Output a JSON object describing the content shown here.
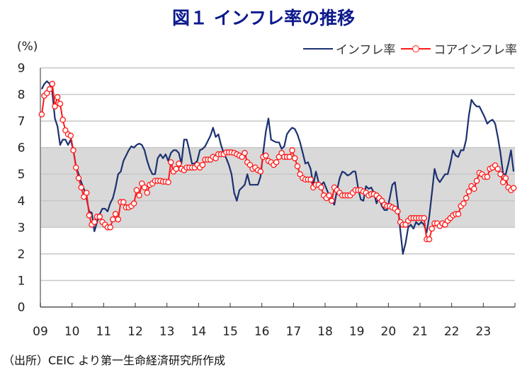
{
  "chart_data": {
    "type": "line",
    "title": "図１ インフレ率の推移",
    "ylabel": "(%)",
    "xlabel": "",
    "ylim": [
      0,
      9
    ],
    "yticks": [
      "0",
      "1",
      "2",
      "3",
      "4",
      "5",
      "6",
      "7",
      "8",
      "9"
    ],
    "xticks": [
      "09",
      "10",
      "11",
      "12",
      "13",
      "14",
      "15",
      "16",
      "17",
      "18",
      "19",
      "20",
      "21",
      "22",
      "23"
    ],
    "x_range": [
      "2009-01",
      "2023-12"
    ],
    "frequency": "monthly",
    "grid": true,
    "legend": "top-right",
    "shaded_band": {
      "from": 3,
      "to": 6,
      "color": "#d9d9d9"
    },
    "series": [
      {
        "name": "インフレ率",
        "color": "#1c3170",
        "marker": "none",
        "values": [
          8.2,
          8.4,
          8.5,
          8.4,
          8.1,
          7.1,
          6.8,
          6.1,
          6.3,
          6.3,
          6.1,
          6.3,
          5.9,
          5.3,
          5.0,
          4.7,
          4.45,
          4.1,
          3.6,
          3.55,
          2.85,
          3.2,
          3.5,
          3.7,
          3.7,
          3.6,
          3.9,
          4.1,
          4.5,
          5.0,
          5.1,
          5.5,
          5.7,
          5.9,
          6.05,
          6.0,
          6.1,
          6.15,
          6.1,
          5.9,
          5.5,
          5.2,
          5.0,
          5.0,
          5.6,
          5.75,
          5.6,
          5.75,
          5.5,
          5.8,
          5.9,
          5.9,
          5.8,
          5.4,
          6.3,
          6.3,
          5.9,
          5.4,
          5.4,
          5.5,
          5.9,
          5.95,
          6.05,
          6.25,
          6.45,
          6.75,
          6.4,
          6.5,
          6.1,
          5.8,
          5.6,
          5.35,
          5.0,
          4.3,
          4.0,
          4.4,
          4.5,
          4.6,
          5.0,
          4.6,
          4.6,
          4.6,
          4.6,
          4.9,
          5.8,
          6.6,
          7.1,
          6.3,
          6.25,
          6.2,
          6.2,
          5.95,
          6.05,
          6.5,
          6.65,
          6.75,
          6.7,
          6.5,
          6.2,
          5.8,
          5.4,
          5.45,
          5.2,
          4.6,
          5.1,
          4.7,
          4.6,
          4.7,
          4.45,
          4.2,
          4.0,
          3.85,
          4.4,
          4.85,
          5.1,
          5.05,
          4.95,
          5.0,
          5.1,
          5.1,
          4.5,
          4.05,
          4.0,
          4.55,
          4.45,
          4.5,
          4.3,
          3.9,
          4.15,
          3.8,
          3.65,
          3.65,
          4.1,
          4.6,
          4.7,
          3.9,
          2.9,
          2.0,
          2.4,
          3.0,
          3.1,
          2.95,
          3.2,
          3.1,
          3.2,
          3.1,
          2.8,
          3.4,
          4.3,
          5.2,
          4.85,
          4.7,
          4.85,
          5.0,
          5.0,
          5.4,
          5.9,
          5.7,
          5.65,
          5.9,
          5.9,
          6.3,
          7.2,
          7.8,
          7.65,
          7.55,
          7.55,
          7.35,
          7.15,
          6.9,
          7.0,
          7.05,
          6.9,
          6.4,
          5.8,
          5.0,
          5.0,
          5.4,
          5.9,
          5.1
        ]
      },
      {
        "name": "コアインフレ率",
        "color": "#ff1a1a",
        "marker": "circle",
        "values": [
          7.25,
          7.95,
          8.05,
          8.2,
          8.4,
          7.55,
          7.9,
          7.65,
          7.05,
          6.65,
          6.5,
          6.45,
          5.9,
          5.25,
          4.85,
          4.5,
          4.15,
          4.3,
          3.45,
          3.1,
          3.2,
          3.4,
          3.4,
          3.2,
          3.1,
          3.0,
          3.0,
          3.3,
          3.5,
          3.3,
          3.95,
          3.95,
          3.75,
          3.75,
          3.8,
          3.9,
          4.4,
          4.2,
          4.65,
          4.5,
          4.3,
          4.6,
          4.65,
          4.75,
          4.75,
          4.75,
          4.72,
          4.72,
          4.7,
          5.45,
          5.1,
          5.2,
          5.4,
          5.2,
          5.15,
          5.25,
          5.25,
          5.25,
          5.25,
          5.35,
          5.25,
          5.35,
          5.55,
          5.55,
          5.55,
          5.65,
          5.6,
          5.75,
          5.75,
          5.75,
          5.82,
          5.82,
          5.82,
          5.8,
          5.75,
          5.7,
          5.65,
          5.8,
          5.45,
          5.35,
          5.2,
          5.25,
          5.15,
          5.1,
          5.65,
          5.7,
          5.5,
          5.45,
          5.35,
          5.45,
          5.65,
          5.8,
          5.65,
          5.65,
          5.65,
          5.9,
          5.6,
          5.3,
          5.0,
          4.85,
          4.8,
          4.8,
          4.8,
          4.5,
          4.6,
          4.6,
          4.5,
          4.2,
          4.1,
          4.2,
          4.0,
          4.5,
          4.4,
          4.3,
          4.2,
          4.2,
          4.2,
          4.2,
          4.3,
          4.4,
          4.4,
          4.4,
          4.35,
          4.3,
          4.2,
          4.25,
          4.25,
          4.2,
          4.1,
          4.0,
          3.85,
          3.8,
          3.8,
          3.75,
          3.7,
          3.6,
          3.2,
          3.1,
          3.1,
          3.25,
          3.35,
          3.35,
          3.35,
          3.35,
          3.35,
          3.35,
          2.55,
          2.55,
          2.95,
          3.15,
          3.15,
          3.05,
          3.15,
          3.1,
          3.25,
          3.35,
          3.45,
          3.5,
          3.5,
          3.8,
          3.9,
          4.1,
          4.35,
          4.55,
          4.45,
          4.75,
          5.05,
          5.0,
          4.9,
          4.9,
          5.2,
          5.25,
          5.33,
          5.2,
          5.0,
          4.7,
          4.85,
          4.5,
          4.4,
          4.48
        ]
      }
    ]
  },
  "source": "（出所）CEIC より第一生命経済研究所作成"
}
